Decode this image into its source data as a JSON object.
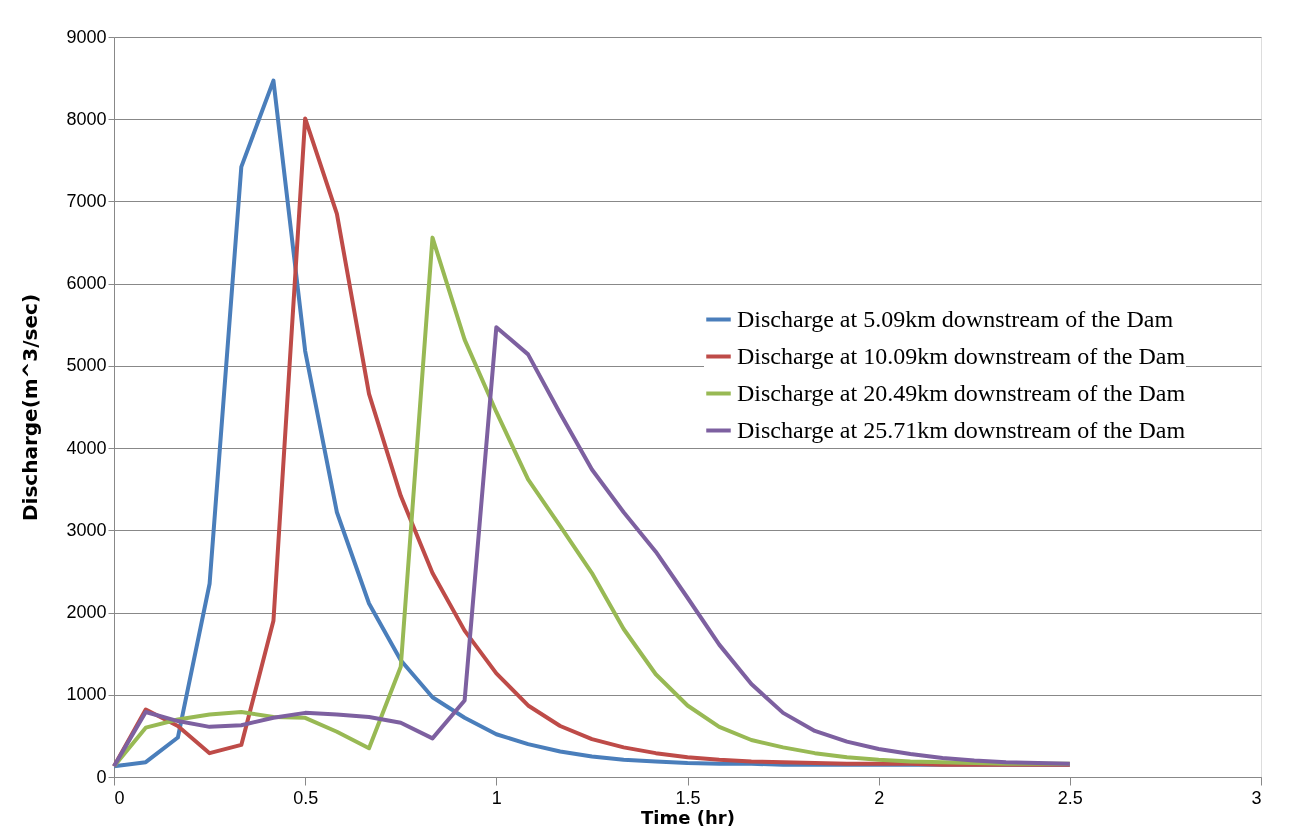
{
  "chart_data": {
    "type": "line",
    "xlabel": "Time (hr)",
    "ylabel": "Discharge(m^3/sec)",
    "x": [
      0,
      0.083,
      0.167,
      0.25,
      0.333,
      0.417,
      0.5,
      0.583,
      0.667,
      0.75,
      0.833,
      0.917,
      1,
      1.083,
      1.167,
      1.25,
      1.333,
      1.417,
      1.5,
      1.583,
      1.667,
      1.75,
      1.833,
      1.917,
      2,
      2.083,
      2.167,
      2.25,
      2.333,
      2.417,
      2.5
    ],
    "series": [
      {
        "name": "Discharge at 5.09km downstream of the Dam",
        "color": "#4a7ebb",
        "values": [
          130,
          180,
          480,
          2350,
          7420,
          8470,
          5180,
          3220,
          2110,
          1420,
          970,
          720,
          520,
          400,
          310,
          250,
          210,
          190,
          170,
          160,
          160,
          150,
          150,
          150,
          150,
          150,
          150,
          150,
          150,
          150,
          150
        ]
      },
      {
        "name": "Discharge at 10.09km downstream of the Dam",
        "color": "#be4b48",
        "values": [
          130,
          820,
          620,
          290,
          390,
          1900,
          8010,
          6850,
          4660,
          3420,
          2480,
          1780,
          1260,
          870,
          620,
          460,
          360,
          290,
          240,
          210,
          190,
          180,
          170,
          160,
          160,
          160,
          150,
          150,
          150,
          150,
          150
        ]
      },
      {
        "name": "Discharge at 20.49km downstream of the Dam",
        "color": "#98b954",
        "values": [
          130,
          600,
          700,
          760,
          790,
          730,
          720,
          550,
          350,
          1340,
          6560,
          5320,
          4440,
          3620,
          3050,
          2480,
          1800,
          1250,
          870,
          610,
          450,
          360,
          290,
          240,
          210,
          190,
          180,
          170,
          160,
          160,
          160
        ]
      },
      {
        "name": "Discharge at 25.71km downstream of the Dam",
        "color": "#7d60a0",
        "values": [
          130,
          790,
          680,
          610,
          630,
          720,
          780,
          760,
          730,
          660,
          470,
          930,
          5470,
          5140,
          4420,
          3740,
          3220,
          2740,
          2180,
          1610,
          1130,
          780,
          560,
          430,
          340,
          280,
          230,
          200,
          180,
          170,
          160
        ]
      }
    ],
    "xlim": [
      0,
      3
    ],
    "xticks": [
      0,
      0.5,
      1,
      1.5,
      2,
      2.5,
      3
    ],
    "ylim": [
      0,
      9000
    ],
    "yticks": [
      0,
      1000,
      2000,
      3000,
      4000,
      5000,
      6000,
      7000,
      8000,
      9000
    ],
    "grid": "y",
    "legend": "right",
    "marker": "none",
    "line_style": "solid"
  }
}
